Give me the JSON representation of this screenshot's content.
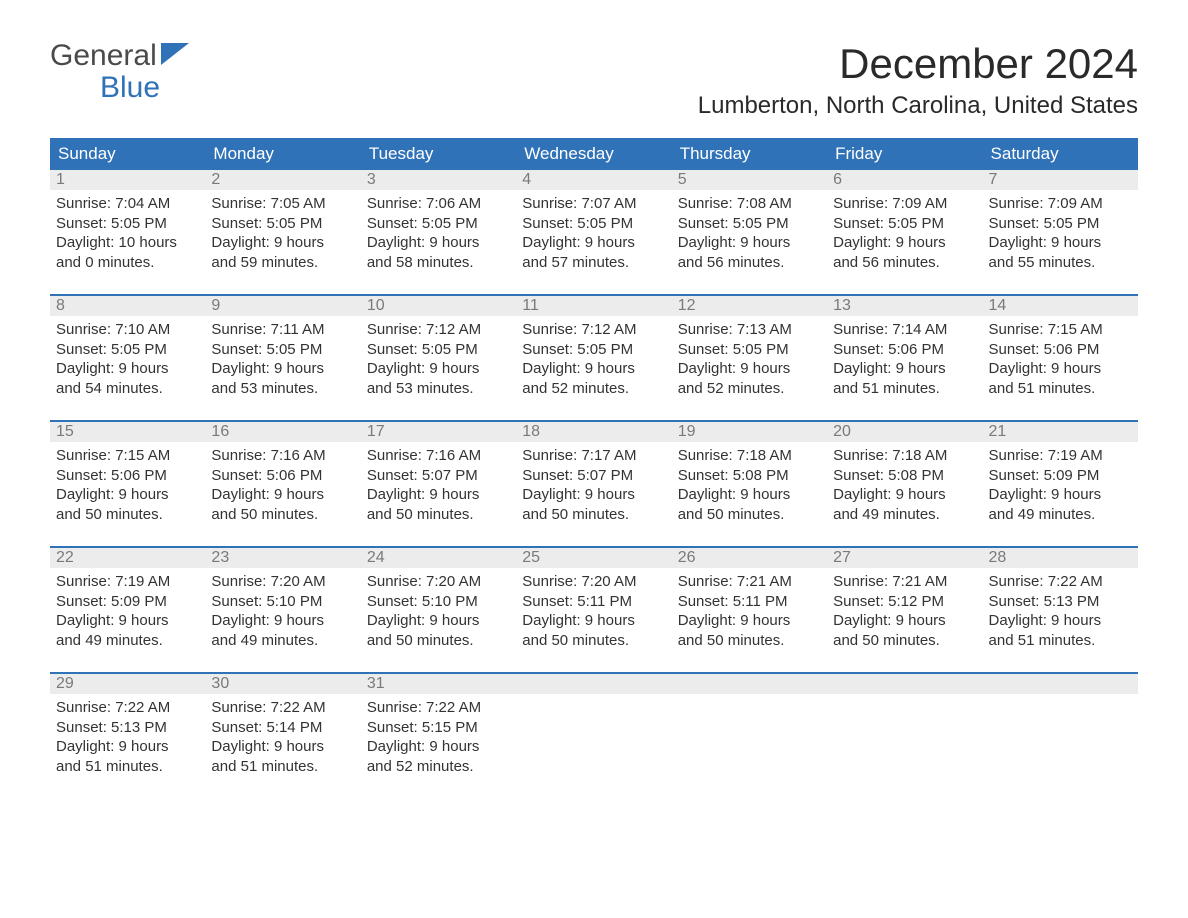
{
  "logo": {
    "text_top": "General",
    "text_bottom": "Blue"
  },
  "title": "December 2024",
  "location": "Lumberton, North Carolina, United States",
  "colors": {
    "header_bg": "#2f72b8",
    "header_text": "#ffffff",
    "daynum_bg": "#ececec",
    "daynum_text": "#7a7a7a",
    "body_text": "#333333",
    "logo_gray": "#4a4a4a",
    "logo_blue": "#2f72b8",
    "week_border": "#2f72b8"
  },
  "fonts": {
    "family": "Arial",
    "month_title_pt": 42,
    "location_pt": 24,
    "header_cell_pt": 17,
    "daynum_pt": 16,
    "daydata_pt": 15,
    "logo_pt": 30
  },
  "day_headers": [
    "Sunday",
    "Monday",
    "Tuesday",
    "Wednesday",
    "Thursday",
    "Friday",
    "Saturday"
  ],
  "weeks": [
    [
      {
        "n": "1",
        "sunrise": "Sunrise: 7:04 AM",
        "sunset": "Sunset: 5:05 PM",
        "day1": "Daylight: 10 hours",
        "day2": "and 0 minutes."
      },
      {
        "n": "2",
        "sunrise": "Sunrise: 7:05 AM",
        "sunset": "Sunset: 5:05 PM",
        "day1": "Daylight: 9 hours",
        "day2": "and 59 minutes."
      },
      {
        "n": "3",
        "sunrise": "Sunrise: 7:06 AM",
        "sunset": "Sunset: 5:05 PM",
        "day1": "Daylight: 9 hours",
        "day2": "and 58 minutes."
      },
      {
        "n": "4",
        "sunrise": "Sunrise: 7:07 AM",
        "sunset": "Sunset: 5:05 PM",
        "day1": "Daylight: 9 hours",
        "day2": "and 57 minutes."
      },
      {
        "n": "5",
        "sunrise": "Sunrise: 7:08 AM",
        "sunset": "Sunset: 5:05 PM",
        "day1": "Daylight: 9 hours",
        "day2": "and 56 minutes."
      },
      {
        "n": "6",
        "sunrise": "Sunrise: 7:09 AM",
        "sunset": "Sunset: 5:05 PM",
        "day1": "Daylight: 9 hours",
        "day2": "and 56 minutes."
      },
      {
        "n": "7",
        "sunrise": "Sunrise: 7:09 AM",
        "sunset": "Sunset: 5:05 PM",
        "day1": "Daylight: 9 hours",
        "day2": "and 55 minutes."
      }
    ],
    [
      {
        "n": "8",
        "sunrise": "Sunrise: 7:10 AM",
        "sunset": "Sunset: 5:05 PM",
        "day1": "Daylight: 9 hours",
        "day2": "and 54 minutes."
      },
      {
        "n": "9",
        "sunrise": "Sunrise: 7:11 AM",
        "sunset": "Sunset: 5:05 PM",
        "day1": "Daylight: 9 hours",
        "day2": "and 53 minutes."
      },
      {
        "n": "10",
        "sunrise": "Sunrise: 7:12 AM",
        "sunset": "Sunset: 5:05 PM",
        "day1": "Daylight: 9 hours",
        "day2": "and 53 minutes."
      },
      {
        "n": "11",
        "sunrise": "Sunrise: 7:12 AM",
        "sunset": "Sunset: 5:05 PM",
        "day1": "Daylight: 9 hours",
        "day2": "and 52 minutes."
      },
      {
        "n": "12",
        "sunrise": "Sunrise: 7:13 AM",
        "sunset": "Sunset: 5:05 PM",
        "day1": "Daylight: 9 hours",
        "day2": "and 52 minutes."
      },
      {
        "n": "13",
        "sunrise": "Sunrise: 7:14 AM",
        "sunset": "Sunset: 5:06 PM",
        "day1": "Daylight: 9 hours",
        "day2": "and 51 minutes."
      },
      {
        "n": "14",
        "sunrise": "Sunrise: 7:15 AM",
        "sunset": "Sunset: 5:06 PM",
        "day1": "Daylight: 9 hours",
        "day2": "and 51 minutes."
      }
    ],
    [
      {
        "n": "15",
        "sunrise": "Sunrise: 7:15 AM",
        "sunset": "Sunset: 5:06 PM",
        "day1": "Daylight: 9 hours",
        "day2": "and 50 minutes."
      },
      {
        "n": "16",
        "sunrise": "Sunrise: 7:16 AM",
        "sunset": "Sunset: 5:06 PM",
        "day1": "Daylight: 9 hours",
        "day2": "and 50 minutes."
      },
      {
        "n": "17",
        "sunrise": "Sunrise: 7:16 AM",
        "sunset": "Sunset: 5:07 PM",
        "day1": "Daylight: 9 hours",
        "day2": "and 50 minutes."
      },
      {
        "n": "18",
        "sunrise": "Sunrise: 7:17 AM",
        "sunset": "Sunset: 5:07 PM",
        "day1": "Daylight: 9 hours",
        "day2": "and 50 minutes."
      },
      {
        "n": "19",
        "sunrise": "Sunrise: 7:18 AM",
        "sunset": "Sunset: 5:08 PM",
        "day1": "Daylight: 9 hours",
        "day2": "and 50 minutes."
      },
      {
        "n": "20",
        "sunrise": "Sunrise: 7:18 AM",
        "sunset": "Sunset: 5:08 PM",
        "day1": "Daylight: 9 hours",
        "day2": "and 49 minutes."
      },
      {
        "n": "21",
        "sunrise": "Sunrise: 7:19 AM",
        "sunset": "Sunset: 5:09 PM",
        "day1": "Daylight: 9 hours",
        "day2": "and 49 minutes."
      }
    ],
    [
      {
        "n": "22",
        "sunrise": "Sunrise: 7:19 AM",
        "sunset": "Sunset: 5:09 PM",
        "day1": "Daylight: 9 hours",
        "day2": "and 49 minutes."
      },
      {
        "n": "23",
        "sunrise": "Sunrise: 7:20 AM",
        "sunset": "Sunset: 5:10 PM",
        "day1": "Daylight: 9 hours",
        "day2": "and 49 minutes."
      },
      {
        "n": "24",
        "sunrise": "Sunrise: 7:20 AM",
        "sunset": "Sunset: 5:10 PM",
        "day1": "Daylight: 9 hours",
        "day2": "and 50 minutes."
      },
      {
        "n": "25",
        "sunrise": "Sunrise: 7:20 AM",
        "sunset": "Sunset: 5:11 PM",
        "day1": "Daylight: 9 hours",
        "day2": "and 50 minutes."
      },
      {
        "n": "26",
        "sunrise": "Sunrise: 7:21 AM",
        "sunset": "Sunset: 5:11 PM",
        "day1": "Daylight: 9 hours",
        "day2": "and 50 minutes."
      },
      {
        "n": "27",
        "sunrise": "Sunrise: 7:21 AM",
        "sunset": "Sunset: 5:12 PM",
        "day1": "Daylight: 9 hours",
        "day2": "and 50 minutes."
      },
      {
        "n": "28",
        "sunrise": "Sunrise: 7:22 AM",
        "sunset": "Sunset: 5:13 PM",
        "day1": "Daylight: 9 hours",
        "day2": "and 51 minutes."
      }
    ],
    [
      {
        "n": "29",
        "sunrise": "Sunrise: 7:22 AM",
        "sunset": "Sunset: 5:13 PM",
        "day1": "Daylight: 9 hours",
        "day2": "and 51 minutes."
      },
      {
        "n": "30",
        "sunrise": "Sunrise: 7:22 AM",
        "sunset": "Sunset: 5:14 PM",
        "day1": "Daylight: 9 hours",
        "day2": "and 51 minutes."
      },
      {
        "n": "31",
        "sunrise": "Sunrise: 7:22 AM",
        "sunset": "Sunset: 5:15 PM",
        "day1": "Daylight: 9 hours",
        "day2": "and 52 minutes."
      },
      {
        "empty": true
      },
      {
        "empty": true
      },
      {
        "empty": true
      },
      {
        "empty": true
      }
    ]
  ]
}
